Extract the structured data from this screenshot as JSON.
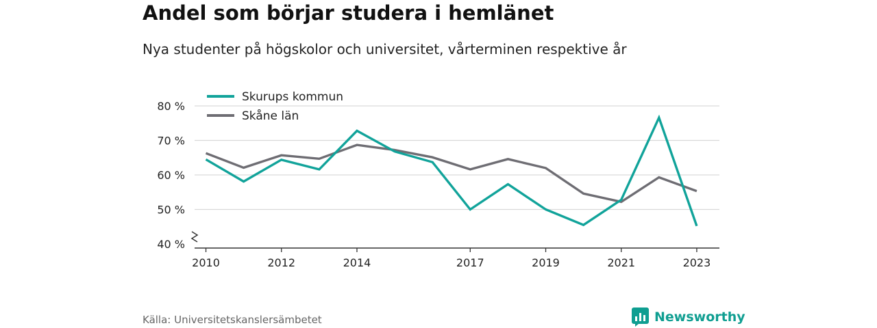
{
  "header": {
    "title": "Andel som börjar studera i hemlänet",
    "subtitle": "Nya studenter på högskolor och universitet, vårterminen respektive år"
  },
  "footer": {
    "source": "Källa: Universitetskanslersämbetet",
    "brand": "Newsworthy",
    "brand_icon": "bar-chart-speech-bubble-icon"
  },
  "colors": {
    "skurup": "#11a39a",
    "skane": "#6e6d73",
    "grid": "#d9d9d9",
    "axis": "#333333",
    "brand": "#0f9e91"
  },
  "chart_data": {
    "type": "line",
    "title": "Andel som börjar studera i hemlänet",
    "subtitle": "Nya studenter på högskolor och universitet, vårterminen respektive år",
    "xlabel": "",
    "ylabel": "",
    "x": [
      2010,
      2011,
      2012,
      2013,
      2014,
      2015,
      2016,
      2017,
      2018,
      2019,
      2020,
      2021,
      2022,
      2023
    ],
    "x_ticks": [
      2010,
      2012,
      2014,
      2017,
      2019,
      2021,
      2023
    ],
    "x_tick_labels": [
      "2010",
      "2012",
      "2014",
      "2017",
      "2019",
      "2021",
      "2023"
    ],
    "xlim": [
      2009.7,
      2023.6
    ],
    "ylim": [
      40,
      80
    ],
    "y_ticks": [
      40,
      50,
      60,
      70,
      80
    ],
    "y_tick_labels": [
      "40 %",
      "50 %",
      "60 %",
      "70 %",
      "80 %"
    ],
    "y_axis_break": true,
    "grid": true,
    "legend_position": "top-left",
    "series": [
      {
        "name": "Skurups kommun",
        "color_key": "skurup",
        "values": [
          64.5,
          58.1,
          64.4,
          61.6,
          72.8,
          66.8,
          63.7,
          50.0,
          57.3,
          50.0,
          45.5,
          52.8,
          76.6,
          45.2
        ]
      },
      {
        "name": "Skåne län",
        "color_key": "skane",
        "values": [
          66.3,
          62.1,
          65.7,
          64.7,
          68.7,
          67.2,
          65.1,
          61.6,
          64.6,
          62.0,
          54.6,
          52.2,
          59.3,
          55.3
        ]
      }
    ]
  }
}
